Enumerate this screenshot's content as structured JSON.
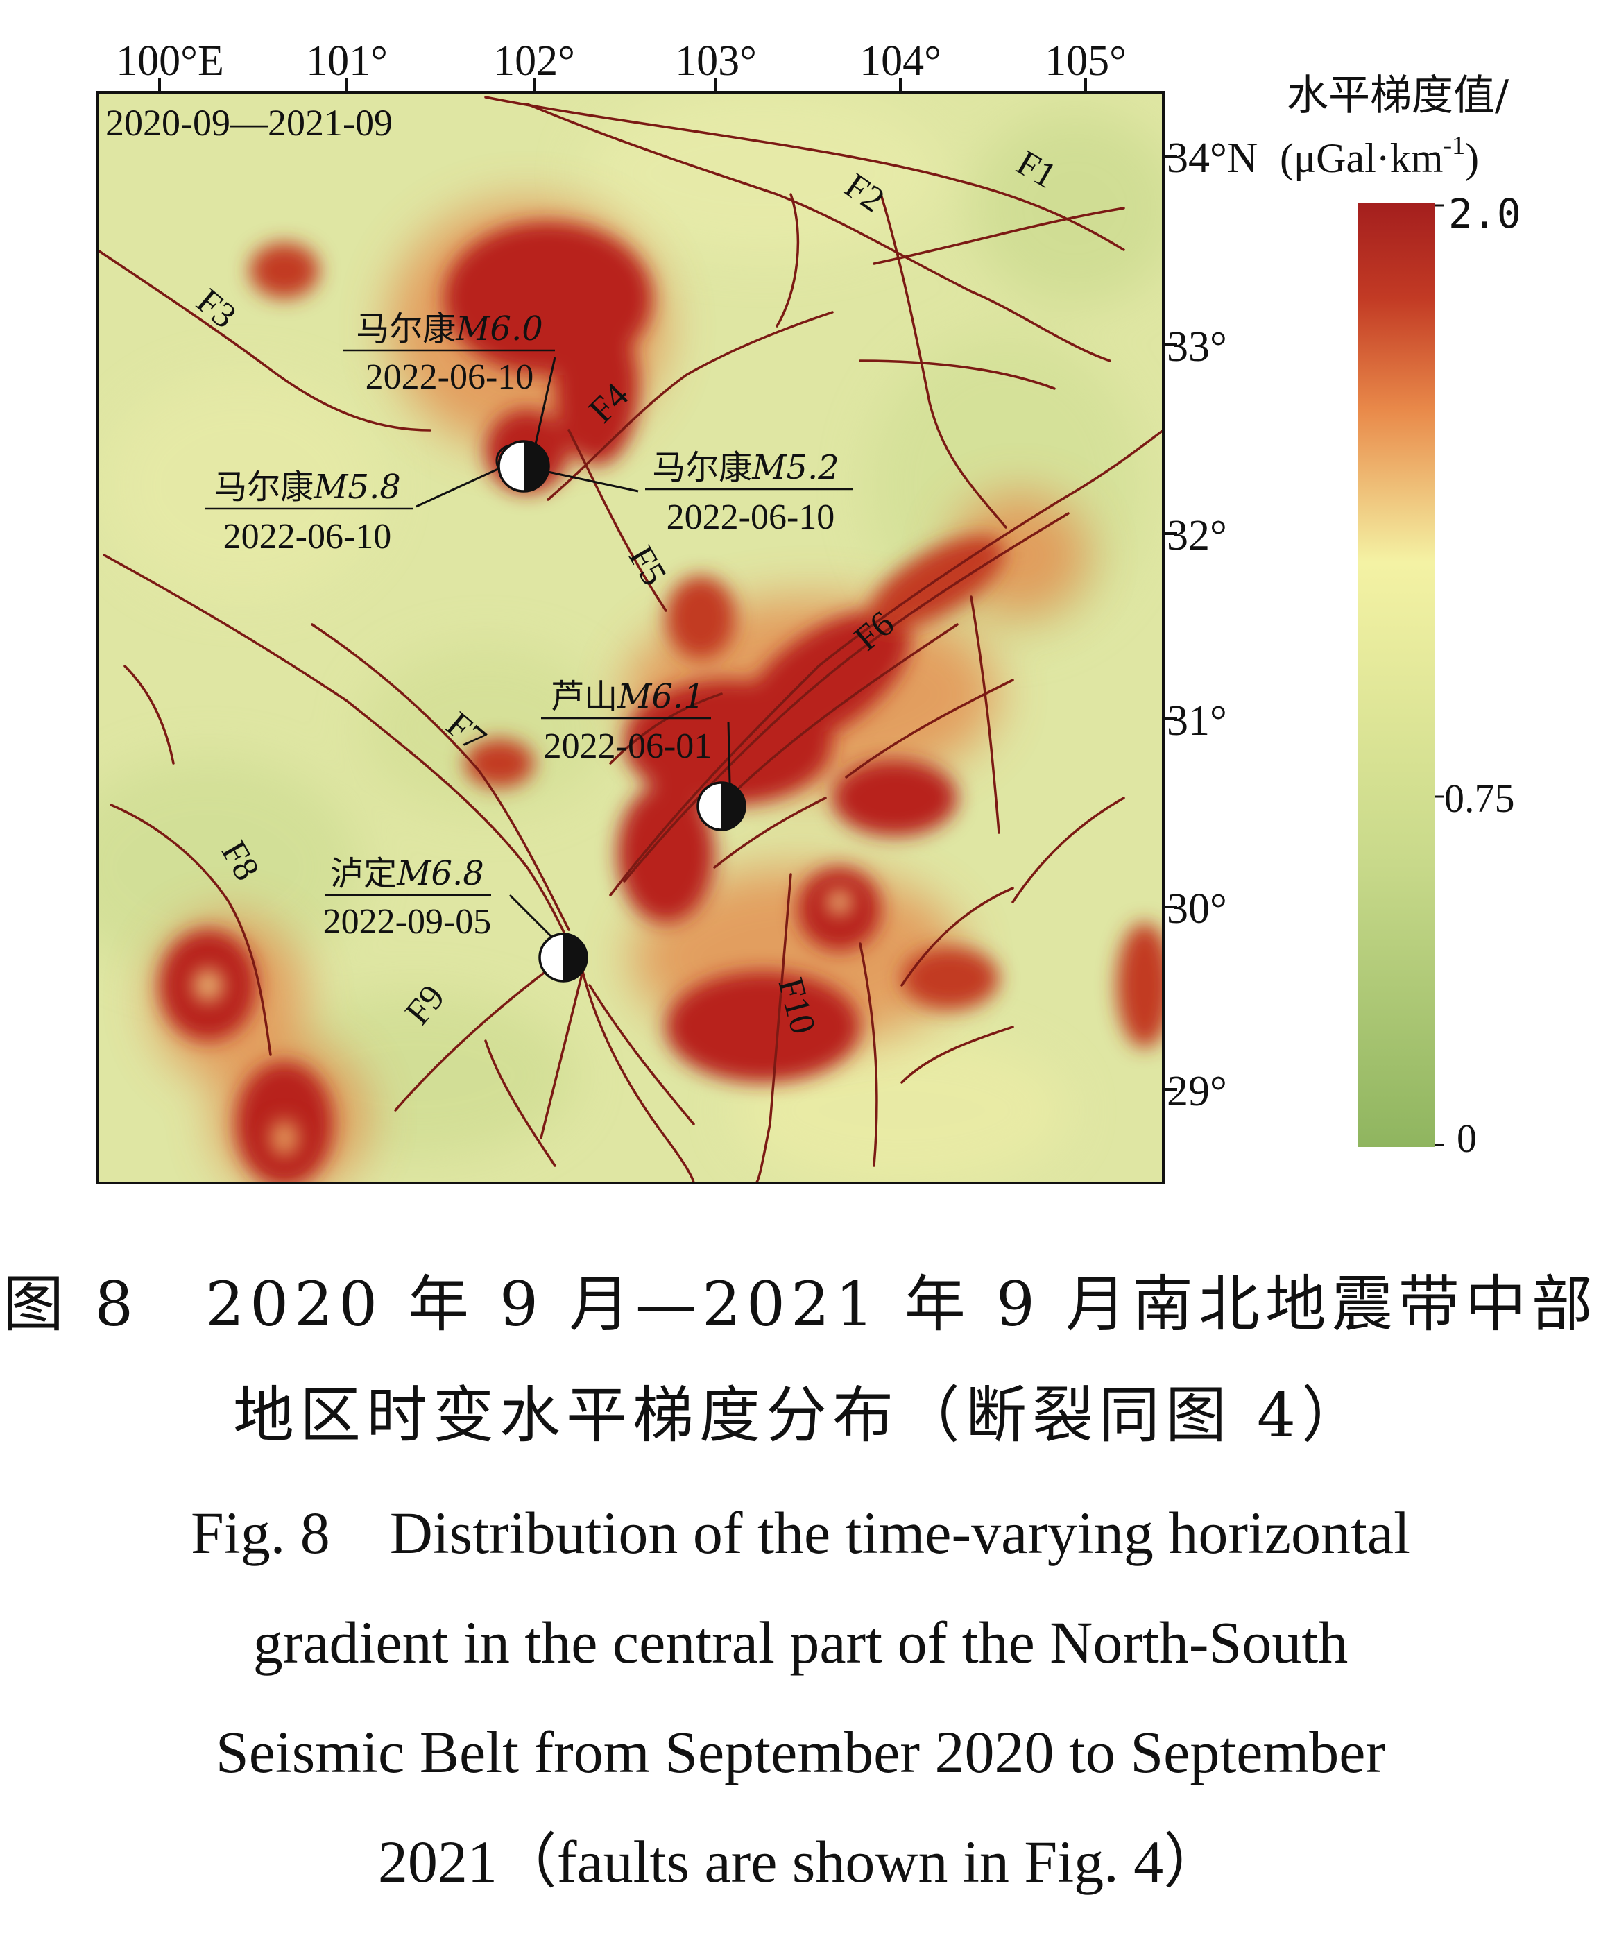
{
  "map": {
    "period_label": "2020-09—2021-09",
    "lon_ticks": [
      "100°E",
      "101°",
      "102°",
      "103°",
      "104°",
      "105°"
    ],
    "lat_ticks": [
      "34°N",
      "33°",
      "32°",
      "31°",
      "30°",
      "29°"
    ],
    "colorbar": {
      "title_line1": "水平梯度值/",
      "title_line2": "(μGal·km",
      "title_sup": "-1",
      "title_close": ")",
      "max_label": "2.0",
      "mid_label": "0.75",
      "min_label": "0",
      "colors": [
        "#8fb55f",
        "#f4f2a4",
        "#e98a4a",
        "#c23a24",
        "#a41f1e"
      ]
    },
    "faults": [
      "F1",
      "F2",
      "F3",
      "F4",
      "F5",
      "F6",
      "F7",
      "F8",
      "F9",
      "F10"
    ],
    "earthquakes": [
      {
        "name": "马尔康",
        "mag": "M6.0",
        "date": "2022-06-10"
      },
      {
        "name": "马尔康",
        "mag": "M5.8",
        "date": "2022-06-10"
      },
      {
        "name": "马尔康",
        "mag": "M5.2",
        "date": "2022-06-10"
      },
      {
        "name": "芦山",
        "mag": "M6.1",
        "date": "2022-06-01"
      },
      {
        "name": "泸定",
        "mag": "M6.8",
        "date": "2022-09-05"
      }
    ],
    "colors": {
      "background": "#dfe6a3",
      "anomaly": "#b8241f",
      "fault": "#7b1a14"
    }
  },
  "caption": {
    "zh_line1": "图 8　2020 年 9 月—2021 年 9 月南北地震带中部",
    "zh_line2": "地区时变水平梯度分布（断裂同图 4）",
    "en_line1": "Fig. 8　Distribution of the time‐varying horizontal",
    "en_line2": "gradient in the central part of the North‐South",
    "en_line3": "Seismic Belt from September 2020 to September",
    "en_line4": "2021（faults are shown in Fig. 4）"
  }
}
